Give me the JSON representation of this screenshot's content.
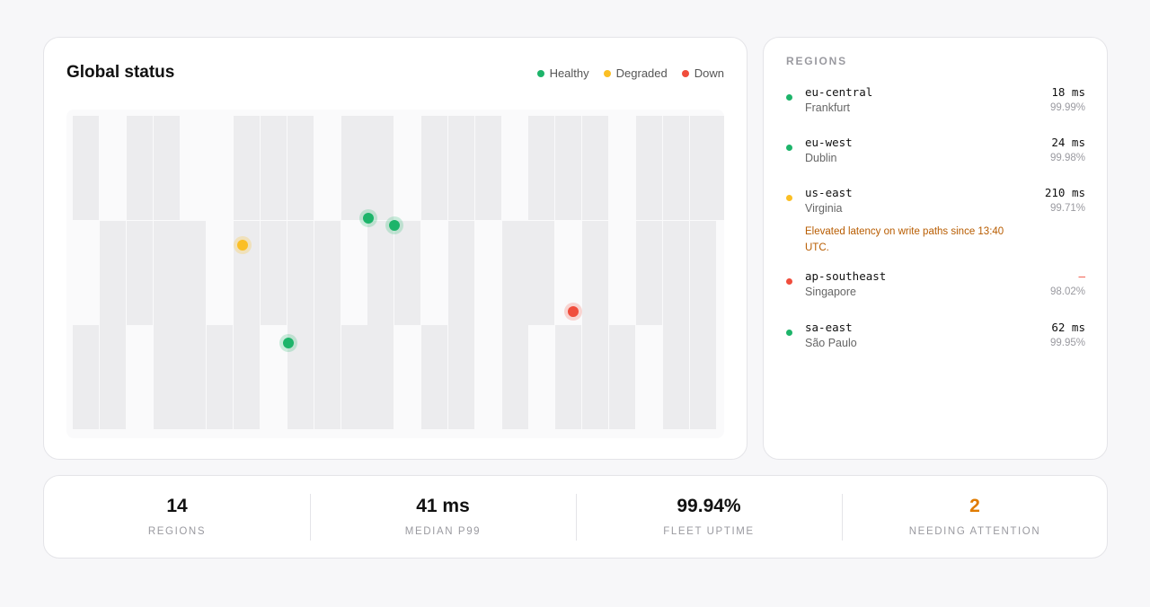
{
  "map": {
    "title": "Global status",
    "legend": [
      {
        "label": "Healthy",
        "color": "#1db46a"
      },
      {
        "label": "Degraded",
        "color": "#fbbf24"
      },
      {
        "label": "Down",
        "color": "#f04d3c"
      }
    ]
  },
  "regions": {
    "heading": "REGIONS",
    "items": [
      {
        "code": "eu-central",
        "city": "Frankfurt",
        "latency": "18 ms",
        "uptime": "99.99%",
        "status": "healthy",
        "color": "#1db46a",
        "note": ""
      },
      {
        "code": "eu-west",
        "city": "Dublin",
        "latency": "24 ms",
        "uptime": "99.98%",
        "status": "healthy",
        "color": "#1db46a",
        "note": ""
      },
      {
        "code": "us-east",
        "city": "Virginia",
        "latency": "210 ms",
        "uptime": "99.71%",
        "status": "degraded",
        "color": "#fbbf24",
        "note": "Elevated latency on write paths since 13:40 UTC."
      },
      {
        "code": "ap-southeast",
        "city": "Singapore",
        "latency": "—",
        "uptime": "98.02%",
        "status": "down",
        "color": "#f04d3c",
        "note": ""
      },
      {
        "code": "sa-east",
        "city": "São Paulo",
        "latency": "62 ms",
        "uptime": "99.95%",
        "status": "healthy",
        "color": "#1db46a",
        "note": ""
      }
    ]
  },
  "stats": [
    {
      "value": "14",
      "label": "REGIONS",
      "color": "#111111"
    },
    {
      "value": "41 ms",
      "label": "MEDIAN P99",
      "color": "#111111"
    },
    {
      "value": "99.94%",
      "label": "FLEET UPTIME",
      "color": "#111111"
    },
    {
      "value": "2",
      "label": "NEEDING ATTENTION",
      "color": "#e07b00"
    }
  ]
}
